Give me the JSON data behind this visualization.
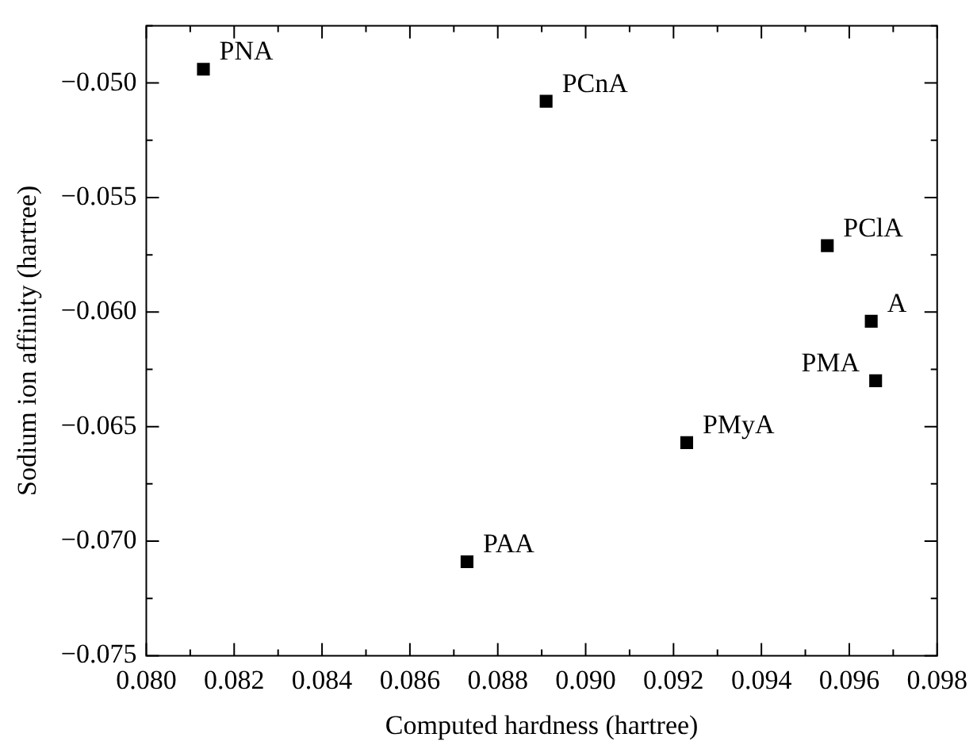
{
  "chart_data": {
    "type": "scatter",
    "xlabel": "Computed hardness (hartree)",
    "ylabel": "Sodium ion affinity (hartree)",
    "x": [
      0.0813,
      0.0891,
      0.0955,
      0.0965,
      0.0966,
      0.0923,
      0.0873
    ],
    "series": [
      {
        "color": "#000000",
        "values": [
          -0.0494,
          -0.0508,
          -0.0571,
          -0.0604,
          -0.063,
          -0.0657,
          -0.0709
        ]
      }
    ],
    "marker": "square",
    "grid": false,
    "legend": false,
    "xlim": [
      0.08,
      0.098
    ],
    "xticks": [
      {
        "value": 0.08,
        "label": "0.080"
      },
      {
        "value": 0.081,
        "label": null
      },
      {
        "value": 0.082,
        "label": "0.082"
      },
      {
        "value": 0.083,
        "label": null
      },
      {
        "value": 0.084,
        "label": "0.084"
      },
      {
        "value": 0.085,
        "label": null
      },
      {
        "value": 0.086,
        "label": "0.086"
      },
      {
        "value": 0.087,
        "label": null
      },
      {
        "value": 0.088,
        "label": "0.088"
      },
      {
        "value": 0.089,
        "label": null
      },
      {
        "value": 0.09,
        "label": "0.090"
      },
      {
        "value": 0.091,
        "label": null
      },
      {
        "value": 0.092,
        "label": "0.092"
      },
      {
        "value": 0.093,
        "label": null
      },
      {
        "value": 0.094,
        "label": "0.094"
      },
      {
        "value": 0.095,
        "label": null
      },
      {
        "value": 0.096,
        "label": "0.096"
      },
      {
        "value": 0.097,
        "label": null
      },
      {
        "value": 0.098,
        "label": "0.098"
      }
    ],
    "ylim": [
      -0.075,
      -0.0475
    ],
    "yticks": [
      {
        "value": -0.075,
        "label": "−0.075"
      },
      {
        "value": -0.0725,
        "label": null
      },
      {
        "value": -0.07,
        "label": "−0.070"
      },
      {
        "value": -0.0675,
        "label": null
      },
      {
        "value": -0.065,
        "label": "−0.065"
      },
      {
        "value": -0.0625,
        "label": null
      },
      {
        "value": -0.06,
        "label": "−0.060"
      },
      {
        "value": -0.0575,
        "label": null
      },
      {
        "value": -0.055,
        "label": "−0.055"
      },
      {
        "value": -0.0525,
        "label": null
      },
      {
        "value": -0.05,
        "label": "−0.050"
      },
      {
        "value": -0.0475,
        "label": null
      }
    ],
    "annotations": [
      {
        "text": "PNA",
        "x": 0.0813,
        "y": -0.0494
      },
      {
        "text": "PCnA",
        "x": 0.0891,
        "y": -0.0508
      },
      {
        "text": "PClA",
        "x": 0.0955,
        "y": -0.0571
      },
      {
        "text": "A",
        "x": 0.0965,
        "y": -0.0604
      },
      {
        "text": "PMA",
        "x": 0.0966,
        "y": -0.063
      },
      {
        "text": "PMyA",
        "x": 0.0923,
        "y": -0.0657
      },
      {
        "text": "PAA",
        "x": 0.0873,
        "y": -0.0709
      }
    ]
  }
}
